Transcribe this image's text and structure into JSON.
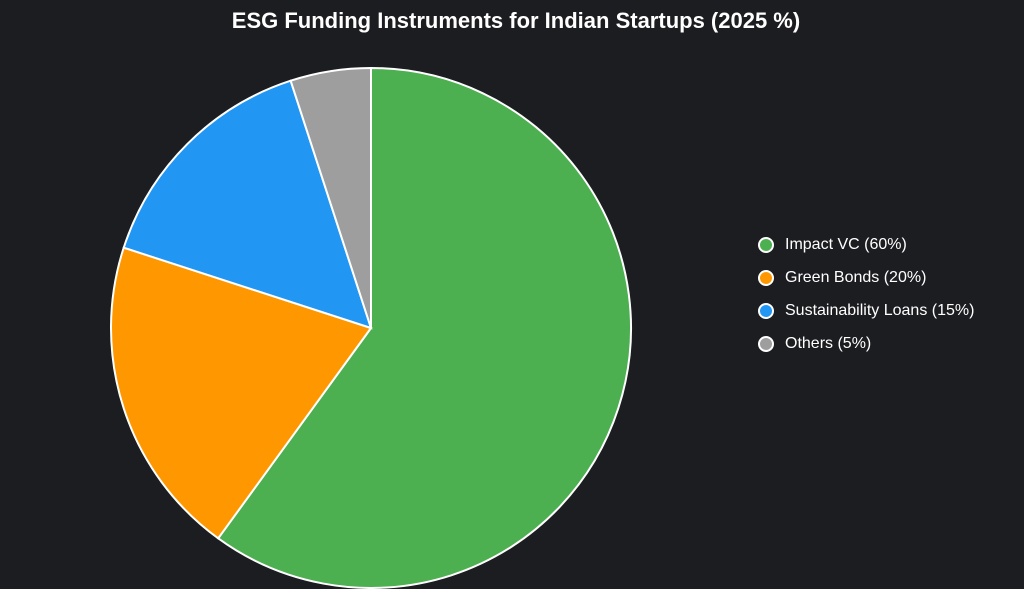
{
  "chart_data": {
    "type": "pie",
    "title": "ESG Funding Instruments for Indian Startups (2025 %)",
    "categories": [
      "Impact VC (60%)",
      "Green Bonds (20%)",
      "Sustainability Loans (15%)",
      "Others (5%)"
    ],
    "values": [
      60,
      20,
      15,
      5
    ],
    "colors": [
      "#4caf50",
      "#ff9800",
      "#2196f3",
      "#9e9e9e"
    ],
    "legend": "right"
  }
}
